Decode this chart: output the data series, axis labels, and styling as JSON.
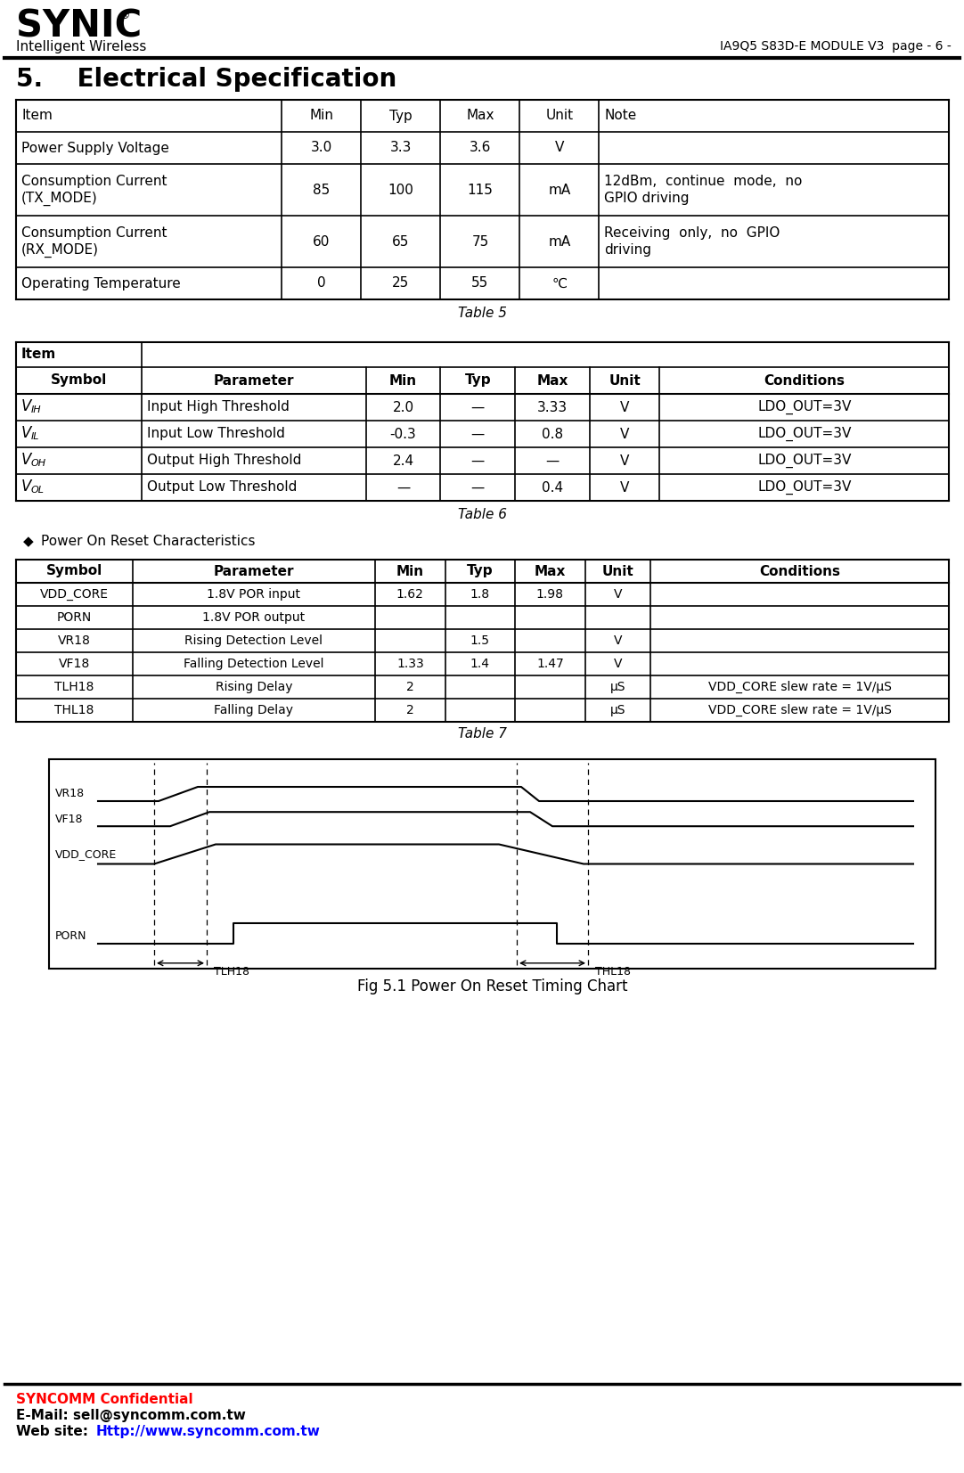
{
  "page_title": "IA9Q5 S83D-E MODULE V3  page - 6 -",
  "section_title": "5.    Electrical Specification",
  "table5_caption": "Table 5",
  "table5_headers": [
    "Item",
    "Min",
    "Typ",
    "Max",
    "Unit",
    "Note"
  ],
  "table5_rows": [
    [
      "Power Supply Voltage",
      "3.0",
      "3.3",
      "3.6",
      "V",
      ""
    ],
    [
      "Consumption Current\n(TX_MODE)",
      "85",
      "100",
      "115",
      "mA",
      "12dBm,  continue  mode,  no\nGPIO driving"
    ],
    [
      "Consumption Current\n(RX_MODE)",
      "60",
      "65",
      "75",
      "mA",
      "Receiving  only,  no  GPIO\ndriving"
    ],
    [
      "Operating Temperature",
      "0",
      "25",
      "55",
      "℃",
      ""
    ]
  ],
  "table6_caption": "Table 6",
  "table6_subheaders": [
    "Symbol",
    "Parameter",
    "Min",
    "Typ",
    "Max",
    "Unit",
    "Conditions"
  ],
  "table6_sym_main": [
    "V",
    "V",
    "V",
    "V"
  ],
  "table6_sym_sub": [
    "IH",
    "IL",
    "OH",
    "OL"
  ],
  "table6_rows": [
    [
      "Input High Threshold",
      "2.0",
      "—",
      "3.33",
      "V",
      "LDO_OUT=3V"
    ],
    [
      "Input Low Threshold",
      "-0.3",
      "—",
      "0.8",
      "V",
      "LDO_OUT=3V"
    ],
    [
      "Output High Threshold",
      "2.4",
      "—",
      "—",
      "V",
      "LDO_OUT=3V"
    ],
    [
      "Output Low Threshold",
      "—",
      "—",
      "0.4",
      "V",
      "LDO_OUT=3V"
    ]
  ],
  "table7_caption": "Table 7",
  "table7_title": "Power On Reset Characteristics",
  "table7_headers": [
    "Symbol",
    "Parameter",
    "Min",
    "Typ",
    "Max",
    "Unit",
    "Conditions"
  ],
  "table7_rows": [
    [
      "VDD_CORE",
      "1.8V POR input",
      "1.62",
      "1.8",
      "1.98",
      "V",
      ""
    ],
    [
      "PORN",
      "1.8V POR output",
      "",
      "",
      "",
      "",
      ""
    ],
    [
      "VR18",
      "Rising Detection Level",
      "",
      "1.5",
      "",
      "V",
      ""
    ],
    [
      "VF18",
      "Falling Detection Level",
      "1.33",
      "1.4",
      "1.47",
      "V",
      ""
    ],
    [
      "TLH18",
      "Rising Delay",
      "2",
      "",
      "",
      "µS",
      "VDD_CORE slew rate = 1V/µS"
    ],
    [
      "THL18",
      "Falling Delay",
      "2",
      "",
      "",
      "µS",
      "VDD_CORE slew rate = 1V/µS"
    ]
  ],
  "fig_caption": "Fig 5.1 Power On Reset Timing Chart",
  "footer_confidential": "SYNCOMM Confidential",
  "footer_email_label": "E-Mail: ",
  "footer_email_value": "sell@syncomm.com.tw",
  "footer_website_label": "Web site: ",
  "footer_website_value": "Http://www.syncomm.com.tw",
  "bg_color": "#ffffff",
  "text_color": "#000000",
  "red_color": "#ff0000",
  "blue_color": "#0000ff"
}
